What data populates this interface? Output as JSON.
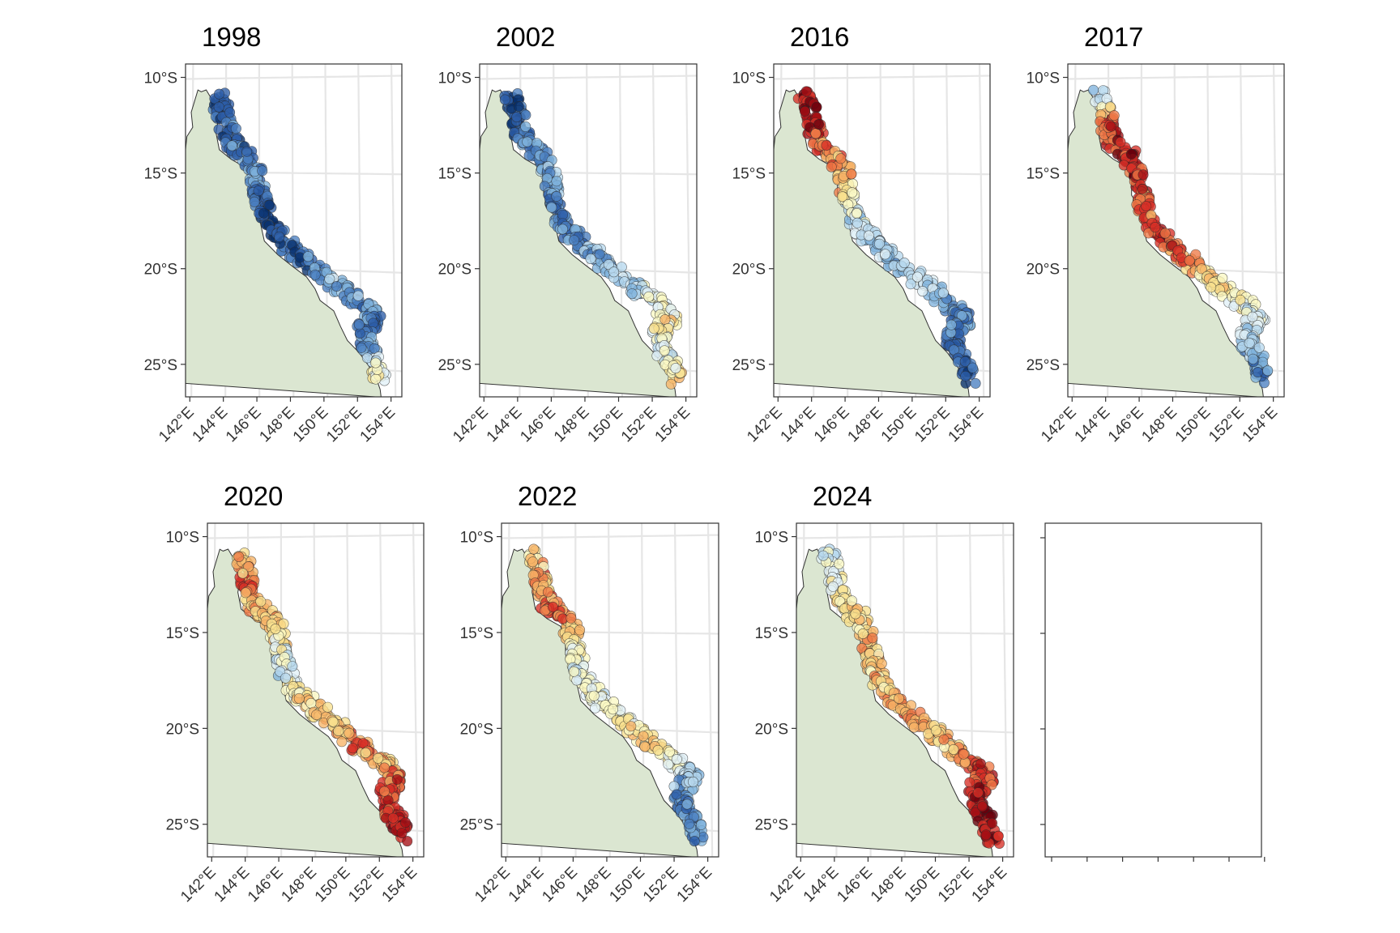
{
  "figure": {
    "type": "faceted-map",
    "colors": {
      "land_fill": "#dbe6d1",
      "land_stroke": "#333333",
      "graticule": "#e6e6e6",
      "panel_border": "#333333",
      "point_stroke": "#2a2a2a"
    },
    "color_scale": [
      "#08306b",
      "#2d5ea8",
      "#4a7fc0",
      "#7fb2dc",
      "#b7d9ee",
      "#e2f1f7",
      "#fbf8c4",
      "#f8e08e",
      "#f7b366",
      "#ee7a46",
      "#d73027",
      "#a50f15",
      "#67000d"
    ]
  },
  "axes": {
    "lat_ticks": [
      "10°S",
      "15°S",
      "20°S",
      "25°S"
    ],
    "lon_ticks": [
      "142°E",
      "144°E",
      "146°E",
      "148°E",
      "150°E",
      "152°E",
      "154°E"
    ]
  },
  "panels": [
    {
      "title": "1998",
      "reef_pattern": [
        -0.8,
        -0.8,
        -0.7,
        -0.6,
        -0.9,
        -0.9,
        -0.8,
        -0.4,
        -0.6,
        -0.7,
        -0.5,
        0.1
      ]
    },
    {
      "title": "2002",
      "reef_pattern": [
        -0.8,
        -0.8,
        -0.6,
        -0.5,
        -0.7,
        -0.6,
        -0.5,
        -0.3,
        -0.1,
        0.1,
        -0.2,
        0.2
      ]
    },
    {
      "title": "2016",
      "reef_pattern": [
        0.9,
        0.8,
        0.5,
        0.4,
        -0.2,
        -0.3,
        -0.4,
        -0.2,
        -0.6,
        -0.7,
        -0.8,
        -0.8
      ]
    },
    {
      "title": "2017",
      "reef_pattern": [
        -0.5,
        0.6,
        0.8,
        0.7,
        0.5,
        0.8,
        0.4,
        0.1,
        -0.1,
        -0.2,
        -0.5,
        -0.7
      ]
    },
    {
      "title": "2020",
      "reef_pattern": [
        0.2,
        0.5,
        0.3,
        0.2,
        -0.3,
        0.1,
        0.2,
        0.5,
        0.3,
        0.6,
        0.7,
        0.8
      ]
    },
    {
      "title": "2022",
      "reef_pattern": [
        0.1,
        0.4,
        0.5,
        0.2,
        -0.2,
        -0.1,
        0.1,
        0.2,
        -0.2,
        -0.5,
        -0.6,
        -0.7
      ]
    },
    {
      "title": "2024",
      "reef_pattern": [
        -0.3,
        0.0,
        0.2,
        0.3,
        0.2,
        0.3,
        0.4,
        0.2,
        0.6,
        0.7,
        0.9,
        0.8
      ]
    }
  ]
}
